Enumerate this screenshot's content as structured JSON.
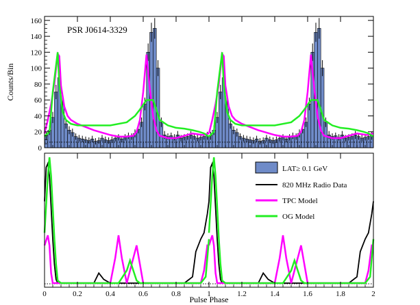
{
  "chart_data": [
    {
      "type": "bar",
      "title": "",
      "annotation": "PSR J0614-3329",
      "xlabel": "",
      "ylabel": "Counts/Bin",
      "xlim": [
        0,
        2
      ],
      "ylim": [
        0,
        165
      ],
      "yticks": [
        0,
        20,
        40,
        60,
        80,
        100,
        120,
        140,
        160
      ],
      "background_level": 7,
      "grid": false,
      "colors": {
        "lat": "#6f8bc8",
        "tpc": "#ff00ff",
        "og": "#22ee22",
        "radio": "#000000"
      },
      "series": [
        {
          "key": "lat",
          "kind": "histogram",
          "x": [
            0.0,
            0.02,
            0.04,
            0.06,
            0.08,
            0.1,
            0.12,
            0.14,
            0.16,
            0.18,
            0.2,
            0.22,
            0.24,
            0.26,
            0.28,
            0.3,
            0.32,
            0.34,
            0.36,
            0.38,
            0.4,
            0.42,
            0.44,
            0.46,
            0.48,
            0.5,
            0.52,
            0.54,
            0.56,
            0.58,
            0.6,
            0.62,
            0.64,
            0.66,
            0.68,
            0.7,
            0.72,
            0.74,
            0.76,
            0.78,
            0.8,
            0.82,
            0.84,
            0.86,
            0.88,
            0.9,
            0.92,
            0.94,
            0.96,
            0.98
          ],
          "values": [
            15,
            22,
            38,
            70,
            88,
            55,
            30,
            22,
            19,
            14,
            12,
            11,
            10,
            9,
            11,
            8,
            9,
            12,
            10,
            9,
            10,
            12,
            13,
            11,
            13,
            15,
            14,
            18,
            23,
            32,
            55,
            120,
            145,
            150,
            100,
            32,
            16,
            14,
            15,
            13,
            16,
            12,
            13,
            14,
            16,
            14,
            12,
            13,
            14,
            15
          ],
          "errors": [
            5,
            6,
            7,
            9,
            10,
            8,
            6,
            5,
            5,
            4,
            4,
            4,
            4,
            4,
            4,
            4,
            4,
            4,
            4,
            4,
            4,
            4,
            4,
            4,
            4,
            4,
            4,
            5,
            5,
            6,
            8,
            11,
            12,
            13,
            10,
            6,
            5,
            4,
            4,
            4,
            5,
            4,
            4,
            4,
            5,
            4,
            4,
            4,
            4,
            5
          ]
        },
        {
          "key": "tpc",
          "kind": "line",
          "x": [
            0.0,
            0.02,
            0.04,
            0.06,
            0.08,
            0.09,
            0.1,
            0.12,
            0.14,
            0.16,
            0.2,
            0.3,
            0.4,
            0.45,
            0.5,
            0.54,
            0.56,
            0.58,
            0.6,
            0.62,
            0.64,
            0.66,
            0.68,
            0.7,
            0.75,
            0.8,
            0.9,
            0.96,
            1.0
          ],
          "values": [
            18,
            35,
            55,
            80,
            118,
            115,
            78,
            52,
            40,
            35,
            30,
            22,
            16,
            14,
            14,
            15,
            20,
            35,
            70,
            117,
            75,
            40,
            22,
            15,
            12,
            12,
            18,
            16,
            18
          ]
        },
        {
          "key": "og",
          "kind": "line",
          "x": [
            0.0,
            0.03,
            0.05,
            0.08,
            0.09,
            0.11,
            0.13,
            0.16,
            0.2,
            0.3,
            0.4,
            0.5,
            0.55,
            0.58,
            0.62,
            0.66,
            0.68,
            0.7,
            0.75,
            0.8,
            0.85,
            0.9,
            0.94,
            0.97,
            1.0
          ],
          "values": [
            14,
            20,
            70,
            120,
            80,
            45,
            35,
            30,
            28,
            28,
            28,
            32,
            40,
            48,
            60,
            60,
            48,
            35,
            28,
            25,
            24,
            22,
            20,
            18,
            14
          ]
        }
      ]
    },
    {
      "type": "line",
      "title": "",
      "xlabel": "Pulse Phase",
      "ylabel": "",
      "xlim": [
        0,
        2
      ],
      "ylim": [
        0,
        1
      ],
      "xticks": [
        0,
        0.2,
        0.4,
        0.6,
        0.8,
        1,
        1.2,
        1.4,
        1.6,
        1.8,
        2
      ],
      "xtick_labels": [
        "0",
        "0.2",
        "0.4",
        "0.6",
        "0.8",
        "1",
        "1.2",
        "1.4",
        "1.6",
        "1.8",
        "2"
      ],
      "legend_position": "top-right",
      "legend": [
        {
          "key": "lat",
          "label": "LAT≥ 0.1 GeV",
          "kind": "box"
        },
        {
          "key": "radio",
          "label": "820 MHz Radio Data",
          "kind": "line"
        },
        {
          "key": "tpc",
          "label": "TPC Model",
          "kind": "line"
        },
        {
          "key": "og",
          "label": "OG Model",
          "kind": "line"
        }
      ],
      "series": [
        {
          "key": "radio",
          "x": [
            0.0,
            0.01,
            0.02,
            0.03,
            0.04,
            0.05,
            0.06,
            0.07,
            0.08,
            0.1,
            0.2,
            0.25,
            0.3,
            0.33,
            0.36,
            0.4,
            0.45,
            0.5,
            0.6,
            0.7,
            0.8,
            0.85,
            0.88,
            0.9,
            0.92,
            0.95,
            0.97,
            0.99,
            1.0
          ],
          "values": [
            0.65,
            0.92,
            0.95,
            0.85,
            0.6,
            0.35,
            0.15,
            0.03,
            0.0,
            0.0,
            0.0,
            0.0,
            0.0,
            0.08,
            0.03,
            0.0,
            0.0,
            0.0,
            0.0,
            0.0,
            0.0,
            0.0,
            0.03,
            0.05,
            0.25,
            0.35,
            0.4,
            0.55,
            0.65
          ]
        },
        {
          "key": "tpc",
          "x": [
            0.0,
            0.02,
            0.03,
            0.04,
            0.05,
            0.06,
            0.08,
            0.2,
            0.4,
            0.43,
            0.45,
            0.47,
            0.5,
            0.54,
            0.56,
            0.58,
            0.6,
            0.8,
            0.95,
            0.97,
            0.99,
            1.0
          ],
          "values": [
            0.3,
            0.38,
            0.3,
            0.08,
            0.0,
            0.0,
            0.0,
            0.0,
            0.0,
            0.2,
            0.38,
            0.2,
            0.0,
            0.2,
            0.3,
            0.15,
            0.0,
            0.0,
            0.0,
            0.1,
            0.3,
            0.3
          ]
        },
        {
          "key": "og",
          "x": [
            0.0,
            0.02,
            0.03,
            0.04,
            0.05,
            0.06,
            0.07,
            0.08,
            0.1,
            0.3,
            0.4,
            0.45,
            0.5,
            0.52,
            0.54,
            0.56,
            0.58,
            0.6,
            0.8,
            0.95,
            0.98,
            1.0
          ],
          "values": [
            0.4,
            0.85,
            1.0,
            0.85,
            0.6,
            0.35,
            0.15,
            0.02,
            0.0,
            0.0,
            0.0,
            0.0,
            0.1,
            0.18,
            0.1,
            0.02,
            0.0,
            0.0,
            0.0,
            0.0,
            0.05,
            0.35
          ]
        }
      ]
    }
  ]
}
